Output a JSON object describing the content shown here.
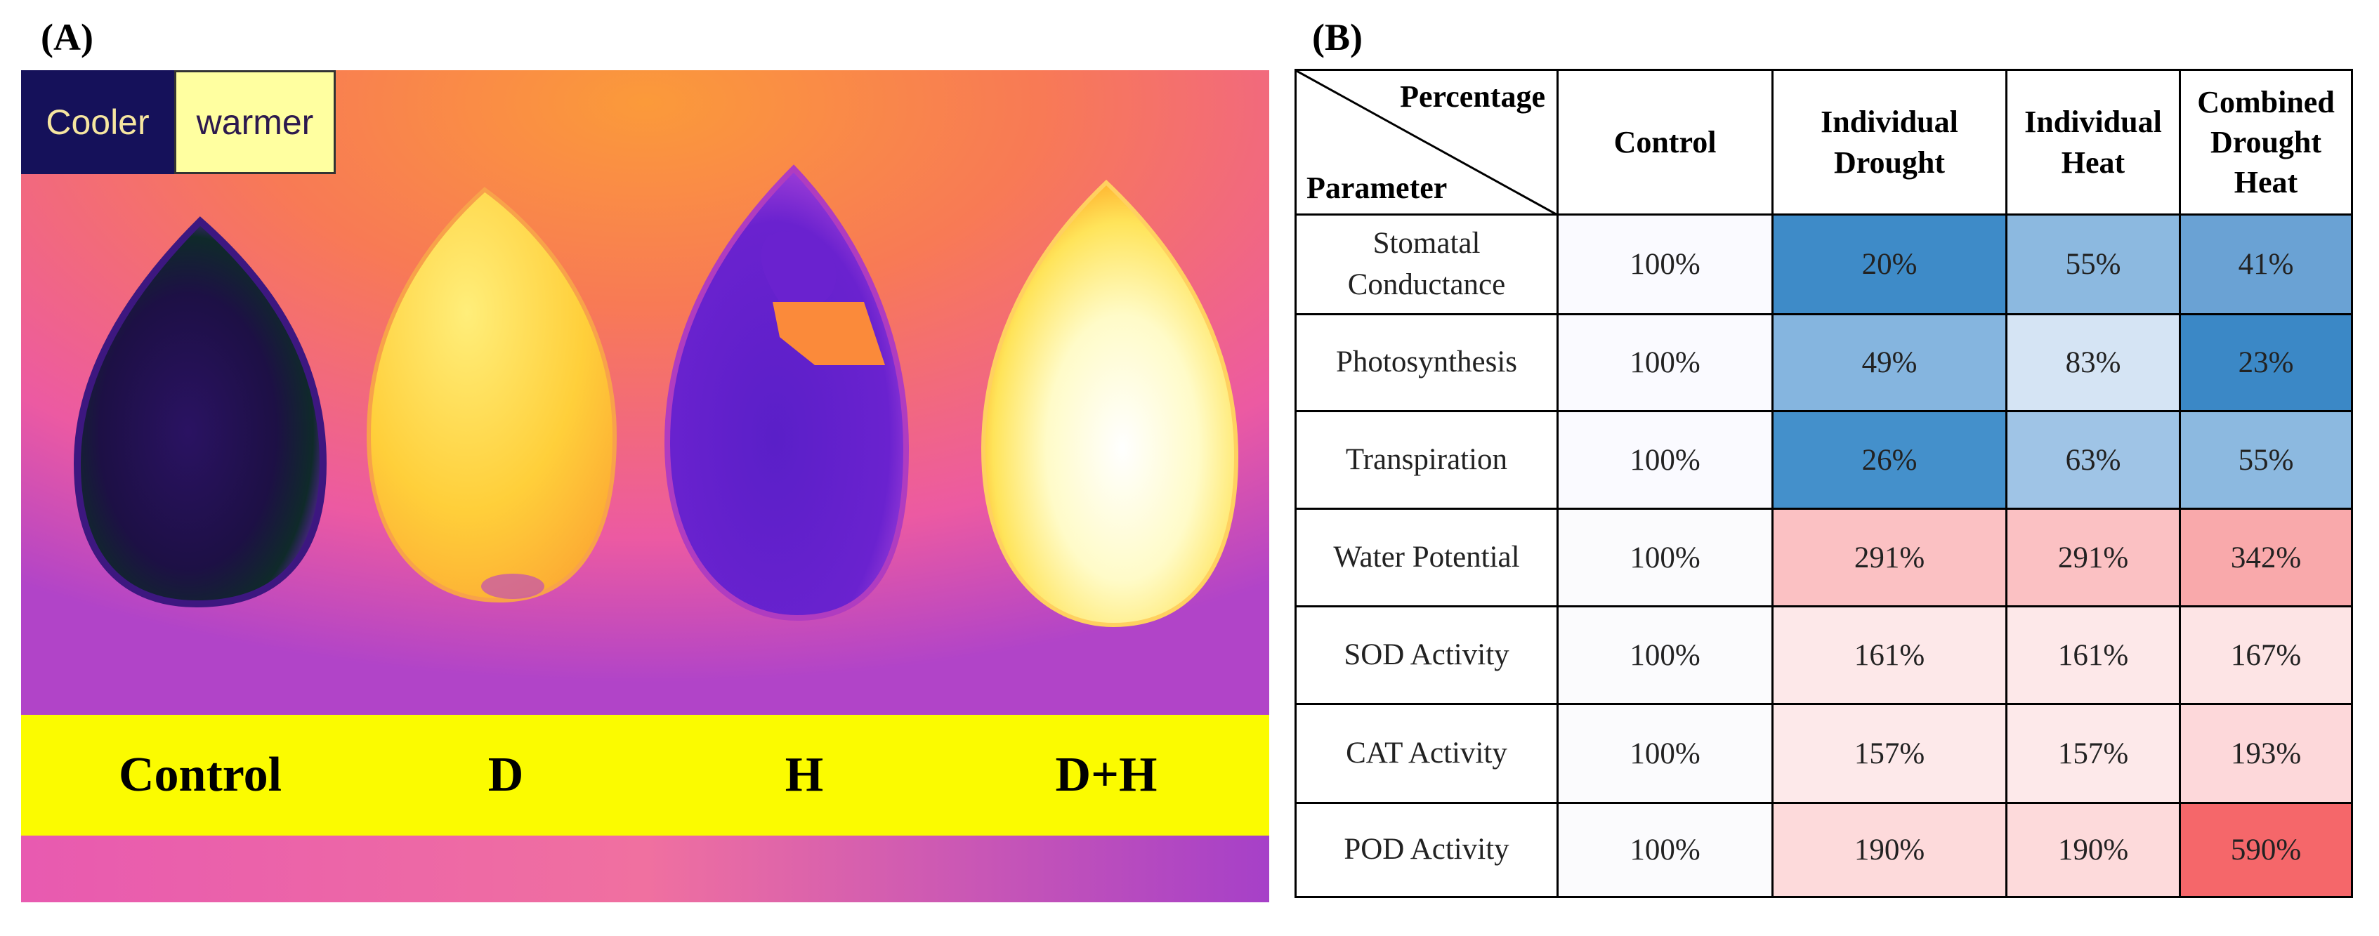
{
  "panels": {
    "a_label": "(A)",
    "b_label": "(B)"
  },
  "thermal_image": {
    "legend": {
      "cooler": "Cooler",
      "warmer": "warmer"
    },
    "treatments": [
      "Control",
      "D",
      "H",
      "D+H"
    ]
  },
  "table": {
    "corner_top": "Percentage",
    "corner_bottom": "Parameter",
    "columns": [
      "Control",
      "Individual Drought",
      "Individual Heat",
      "Combined Drought Heat"
    ],
    "rows": [
      {
        "parameter": "Stomatal Conductance",
        "values": [
          "100%",
          "20%",
          "55%",
          "41%"
        ],
        "colors": [
          "#fafaff",
          "#3e8bc8",
          "#8cb9e0",
          "#6aa2d4"
        ]
      },
      {
        "parameter": "Photosynthesis",
        "values": [
          "100%",
          "49%",
          "83%",
          "23%"
        ],
        "colors": [
          "#fafaff",
          "#85b5df",
          "#d5e4f4",
          "#3b88c6"
        ]
      },
      {
        "parameter": "Transpiration",
        "values": [
          "100%",
          "26%",
          "63%",
          "55%"
        ],
        "colors": [
          "#fafaff",
          "#4490cb",
          "#9fc4e6",
          "#8cb9e0"
        ]
      },
      {
        "parameter": "Water Potential",
        "values": [
          "100%",
          "291%",
          "291%",
          "342%"
        ],
        "colors": [
          "#fbfbfd",
          "#fbc1c3",
          "#fbc1c3",
          "#f9a9ab"
        ]
      },
      {
        "parameter": "SOD Activity",
        "values": [
          "100%",
          "161%",
          "161%",
          "167%"
        ],
        "colors": [
          "#fbfbfd",
          "#fde8e9",
          "#fde8e9",
          "#fde4e5"
        ]
      },
      {
        "parameter": "CAT Activity",
        "values": [
          "100%",
          "157%",
          "157%",
          "193%"
        ],
        "colors": [
          "#fbfbfd",
          "#fde9ea",
          "#fde9ea",
          "#fdd8da"
        ]
      },
      {
        "parameter": "POD Activity",
        "values": [
          "100%",
          "190%",
          "190%",
          "590%"
        ],
        "colors": [
          "#fbfbfd",
          "#fddadb",
          "#fddadb",
          "#f5676a"
        ]
      }
    ]
  }
}
